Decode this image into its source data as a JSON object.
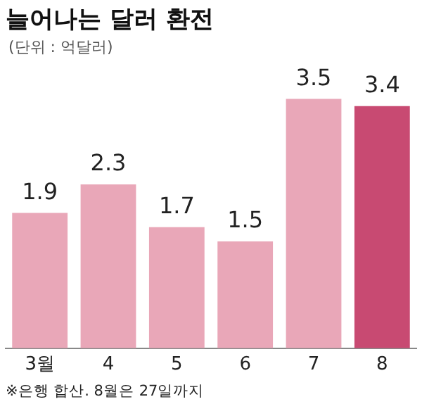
{
  "chart_data": {
    "type": "bar",
    "title": "늘어나는 달러 환전",
    "subtitle": "(단위 : 억달러)",
    "categories": [
      "3월",
      "4",
      "5",
      "6",
      "7",
      "8"
    ],
    "values": [
      1.9,
      2.3,
      1.7,
      1.5,
      3.5,
      3.4
    ],
    "colors": [
      "#e9a7b8",
      "#e9a7b8",
      "#e9a7b8",
      "#e9a7b8",
      "#e9a7b8",
      "#c84a72"
    ],
    "data_labels": true,
    "grid": false,
    "legend": false,
    "annotations": [
      "※은행 합산. 8월은 27일까지"
    ]
  }
}
